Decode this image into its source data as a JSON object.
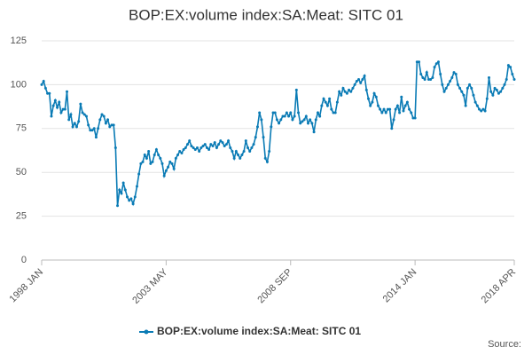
{
  "chart_data": {
    "type": "line",
    "title": "BOP:EX:volume index:SA:Meat: SITC 01",
    "source": "Source:",
    "categories": [
      "1998 JAN",
      null,
      null,
      null,
      null,
      null,
      null,
      null,
      null,
      null,
      null,
      null,
      null,
      null,
      null,
      null,
      null,
      null,
      null,
      null,
      null,
      null,
      null,
      null,
      null,
      null,
      null,
      null,
      null,
      null,
      null,
      null,
      null,
      null,
      null,
      null,
      null,
      null,
      null,
      null,
      null,
      null,
      null,
      null,
      null,
      null,
      null,
      null,
      null,
      null,
      null,
      null,
      null,
      null,
      null,
      null,
      null,
      null,
      null,
      null,
      null,
      null,
      null,
      null,
      "2003 MAY",
      null,
      null,
      null,
      null,
      null,
      null,
      null,
      null,
      null,
      null,
      null,
      null,
      null,
      null,
      null,
      null,
      null,
      null,
      null,
      null,
      null,
      null,
      null,
      null,
      null,
      null,
      null,
      null,
      null,
      null,
      null,
      null,
      null,
      null,
      null,
      null,
      null,
      null,
      null,
      null,
      null,
      null,
      null,
      null,
      null,
      null,
      null,
      null,
      null,
      null,
      null,
      null,
      null,
      null,
      null,
      null,
      null,
      null,
      null,
      null,
      null,
      null,
      null,
      "2008 SEP",
      null,
      null,
      null,
      null,
      null,
      null,
      null,
      null,
      null,
      null,
      null,
      null,
      null,
      null,
      null,
      null,
      null,
      null,
      null,
      null,
      null,
      null,
      null,
      null,
      null,
      null,
      null,
      null,
      null,
      null,
      null,
      null,
      null,
      null,
      null,
      null,
      null,
      null,
      null,
      null,
      null,
      null,
      null,
      null,
      null,
      null,
      null,
      null,
      null,
      null,
      null,
      null,
      null,
      null,
      null,
      null,
      null,
      null,
      null,
      null,
      null,
      null,
      null,
      "2014 JAN",
      null,
      null,
      null,
      null,
      null,
      null,
      null,
      null,
      null,
      null,
      null,
      null,
      null,
      null,
      null,
      null,
      null,
      null,
      null,
      null,
      null,
      null,
      null,
      null,
      null,
      null,
      null,
      null,
      null,
      null,
      null,
      null,
      null,
      null,
      null,
      null,
      null,
      null,
      null,
      null,
      null,
      null,
      null,
      null,
      null,
      null,
      null,
      null,
      null,
      null,
      "2018 APR"
    ],
    "series": [
      {
        "name": "BOP:EX:volume index:SA:Meat: SITC 01",
        "color": "#0a7bb5",
        "values": [
          100,
          102,
          98,
          95,
          95,
          82,
          88,
          91,
          87,
          90,
          84,
          86,
          86,
          96,
          80,
          83,
          76,
          78,
          76,
          79,
          89,
          84,
          83,
          82,
          77,
          74,
          74,
          75,
          70,
          75,
          80,
          83,
          82,
          78,
          80,
          76,
          77,
          77,
          64,
          31,
          40,
          38,
          44,
          40,
          36,
          34,
          35,
          32,
          36,
          42,
          49,
          55,
          56,
          60,
          58,
          62,
          55,
          56,
          60,
          63,
          60,
          58,
          55,
          48,
          51,
          53,
          56,
          55,
          52,
          58,
          60,
          62,
          61,
          63,
          64,
          66,
          68,
          65,
          64,
          63,
          64,
          62,
          64,
          65,
          66,
          64,
          63,
          66,
          65,
          67,
          64,
          66,
          68,
          67,
          65,
          66,
          68,
          64,
          62,
          58,
          62,
          60,
          58,
          60,
          62,
          68,
          64,
          62,
          64,
          66,
          70,
          76,
          84,
          80,
          70,
          58,
          56,
          62,
          76,
          84,
          84,
          80,
          78,
          80,
          82,
          82,
          84,
          82,
          84,
          80,
          82,
          97,
          84,
          78,
          79,
          80,
          82,
          78,
          80,
          78,
          73,
          80,
          84,
          82,
          88,
          92,
          90,
          88,
          92,
          86,
          84,
          84,
          90,
          96,
          94,
          98,
          96,
          95,
          97,
          96,
          98,
          100,
          102,
          103,
          101,
          103,
          105,
          97,
          92,
          88,
          90,
          95,
          93,
          88,
          86,
          84,
          86,
          84,
          86,
          86,
          75,
          80,
          86,
          88,
          84,
          93,
          85,
          88,
          90,
          86,
          84,
          81,
          81,
          113,
          113,
          106,
          104,
          103,
          107,
          103,
          103,
          104,
          110,
          112,
          113,
          106,
          100,
          96,
          98,
          100,
          102,
          104,
          107,
          106,
          100,
          98,
          96,
          94,
          88,
          98,
          100,
          98,
          94,
          90,
          88,
          86,
          85,
          86,
          85,
          92,
          104,
          96,
          94,
          98,
          97,
          95,
          96,
          98,
          100,
          103,
          111,
          110,
          106,
          103
        ]
      }
    ],
    "ylim": [
      0,
      125
    ],
    "yticks": [
      0,
      25,
      50,
      75,
      100,
      125
    ],
    "grid": true
  }
}
